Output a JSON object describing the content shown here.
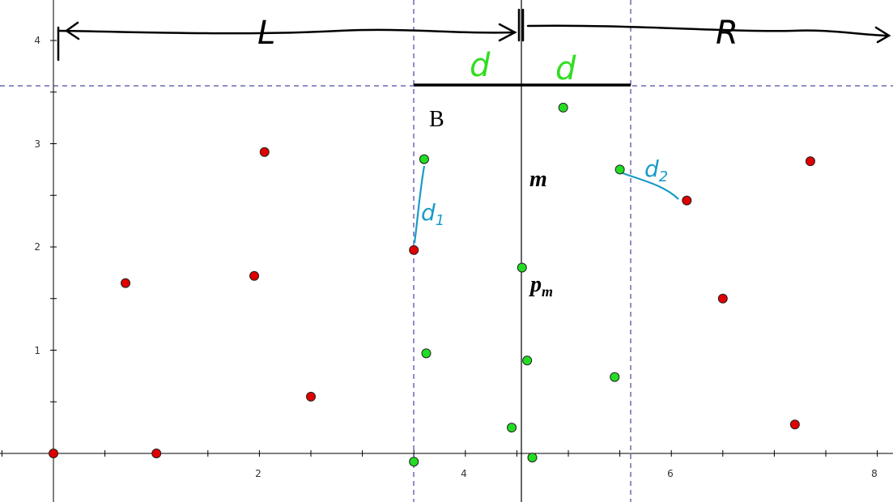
{
  "colors": {
    "red_point": "#e00000",
    "green_point": "#22dd22",
    "dashed_line": "#1f1f8f",
    "annotation_green": "#33dd22",
    "annotation_blue": "#1a9bc8"
  },
  "x_ticks": [
    "2",
    "4",
    "6",
    "8"
  ],
  "y_ticks": [
    "1",
    "2",
    "3",
    "4"
  ],
  "labels": {
    "left_region": "L",
    "right_region": "R",
    "strip_half_left": "d",
    "strip_half_right": "d",
    "box": "B",
    "median": "m",
    "median_point": "p",
    "median_point_sub": "m",
    "dist1": "d",
    "dist1_sub": "1",
    "dist2": "d",
    "dist2_sub": "2"
  },
  "geometry_values": {
    "median_x": 4.55,
    "strip_left_x": 3.5,
    "strip_right_x": 5.6,
    "strip_top_y": 3.55
  },
  "points_red": [
    [
      0,
      0
    ],
    [
      0.7,
      1.65
    ],
    [
      1.0,
      0
    ],
    [
      1.95,
      1.72
    ],
    [
      2.05,
      2.92
    ],
    [
      2.5,
      0.55
    ],
    [
      3.5,
      1.97
    ],
    [
      6.15,
      2.45
    ],
    [
      6.5,
      1.5
    ],
    [
      7.2,
      0.28
    ],
    [
      7.35,
      2.83
    ]
  ],
  "points_green": [
    [
      3.5,
      -0.08
    ],
    [
      3.6,
      2.85
    ],
    [
      3.62,
      0.97
    ],
    [
      4.45,
      0.25
    ],
    [
      4.55,
      1.8
    ],
    [
      4.6,
      0.9
    ],
    [
      4.65,
      -0.04
    ],
    [
      4.95,
      3.35
    ],
    [
      5.45,
      0.74
    ],
    [
      5.5,
      2.75
    ]
  ]
}
